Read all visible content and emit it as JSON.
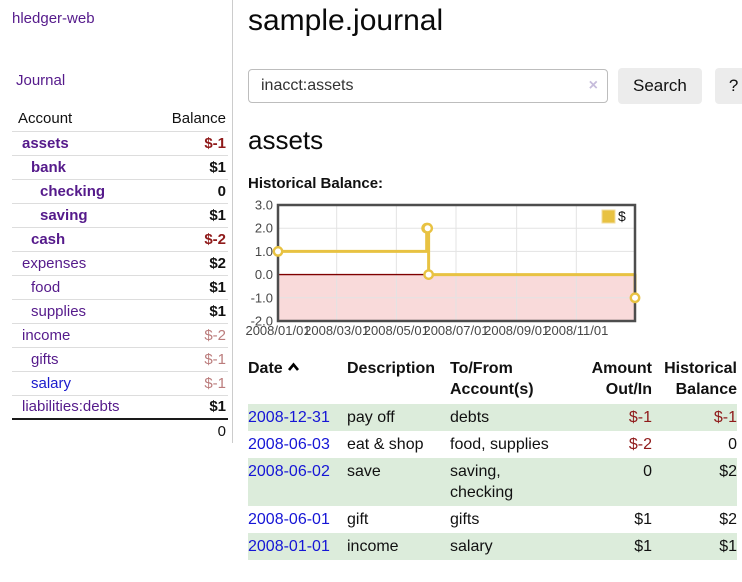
{
  "sidebar": {
    "app_title": "hledger-web",
    "journal_link": "Journal",
    "table": {
      "account_header": "Account",
      "balance_header": "Balance",
      "rows": [
        {
          "name": "assets",
          "balance": "$-1"
        },
        {
          "name": "bank",
          "balance": "$1"
        },
        {
          "name": "checking",
          "balance": "0"
        },
        {
          "name": "saving",
          "balance": "$1"
        },
        {
          "name": "cash",
          "balance": "$-2"
        },
        {
          "name": "expenses",
          "balance": "$2"
        },
        {
          "name": "food",
          "balance": "$1"
        },
        {
          "name": "supplies",
          "balance": "$1"
        },
        {
          "name": "income",
          "balance": "$-2"
        },
        {
          "name": "gifts",
          "balance": "$-1"
        },
        {
          "name": "salary",
          "balance": "$-1"
        },
        {
          "name": "liabilities:debts",
          "balance": "$1"
        }
      ],
      "total": "0"
    }
  },
  "header": {
    "title": "sample.journal"
  },
  "search": {
    "value": "inacct:assets",
    "clear_icon": "×",
    "button_label": "Search",
    "help_label": "?"
  },
  "account_page": {
    "title": "assets",
    "chart_label": "Historical Balance:"
  },
  "chart_data": {
    "type": "line",
    "title": "Historical Balance:",
    "series": [
      {
        "name": "$",
        "step": true,
        "color": "#e8c242",
        "points": [
          [
            "2008-01-01",
            1
          ],
          [
            "2008-06-01",
            2
          ],
          [
            "2008-06-02",
            2
          ],
          [
            "2008-06-03",
            0
          ],
          [
            "2008-12-31",
            -1
          ]
        ]
      }
    ],
    "ylim": [
      -2,
      3
    ],
    "yticks": [
      "3.0",
      "2.0",
      "1.0",
      "0.0",
      "-1.0",
      "-2.0"
    ],
    "xticks": [
      "2008/01/01",
      "2008/03/01",
      "2008/05/01",
      "2008/07/01",
      "2008/09/01",
      "2008/11/01"
    ],
    "xrange": [
      "2008-01-01",
      "2008-12-31"
    ],
    "legend": "$",
    "grid": true,
    "legend_position": "top-right",
    "negative_fill": "#f9dada",
    "zero_line_color": "#7f0000",
    "border_color": "#4d4d4d",
    "grid_color": "#e3e3e3"
  },
  "register": {
    "headers": {
      "date": "Date",
      "description": "Description",
      "accounts": "To/From Account(s)",
      "amount": "Amount Out/In",
      "balance": "Historical Balance"
    },
    "rows": [
      {
        "date": "2008-12-31",
        "description": "pay off",
        "accounts": "debts",
        "amount": "$-1",
        "balance": "$-1"
      },
      {
        "date": "2008-06-03",
        "description": "eat & shop",
        "accounts": "food, supplies",
        "amount": "$-2",
        "balance": "0"
      },
      {
        "date": "2008-06-02",
        "description": "save",
        "accounts": "saving, checking",
        "amount": "0",
        "balance": "$2"
      },
      {
        "date": "2008-06-01",
        "description": "gift",
        "accounts": "gifts",
        "amount": "$1",
        "balance": "$2"
      },
      {
        "date": "2008-01-01",
        "description": "income",
        "accounts": "salary",
        "amount": "$1",
        "balance": "$1"
      }
    ]
  },
  "colors": {
    "link_purple": "#551a8b",
    "link_blue": "#1515d6",
    "negative_red": "#8f1a1a",
    "muted_red": "#bb7c7c",
    "row_green": "#dcecdb",
    "series_gold": "#e8c242",
    "negative_area_pink": "#f9dada",
    "zero_line_dark_red": "#7f0000"
  }
}
